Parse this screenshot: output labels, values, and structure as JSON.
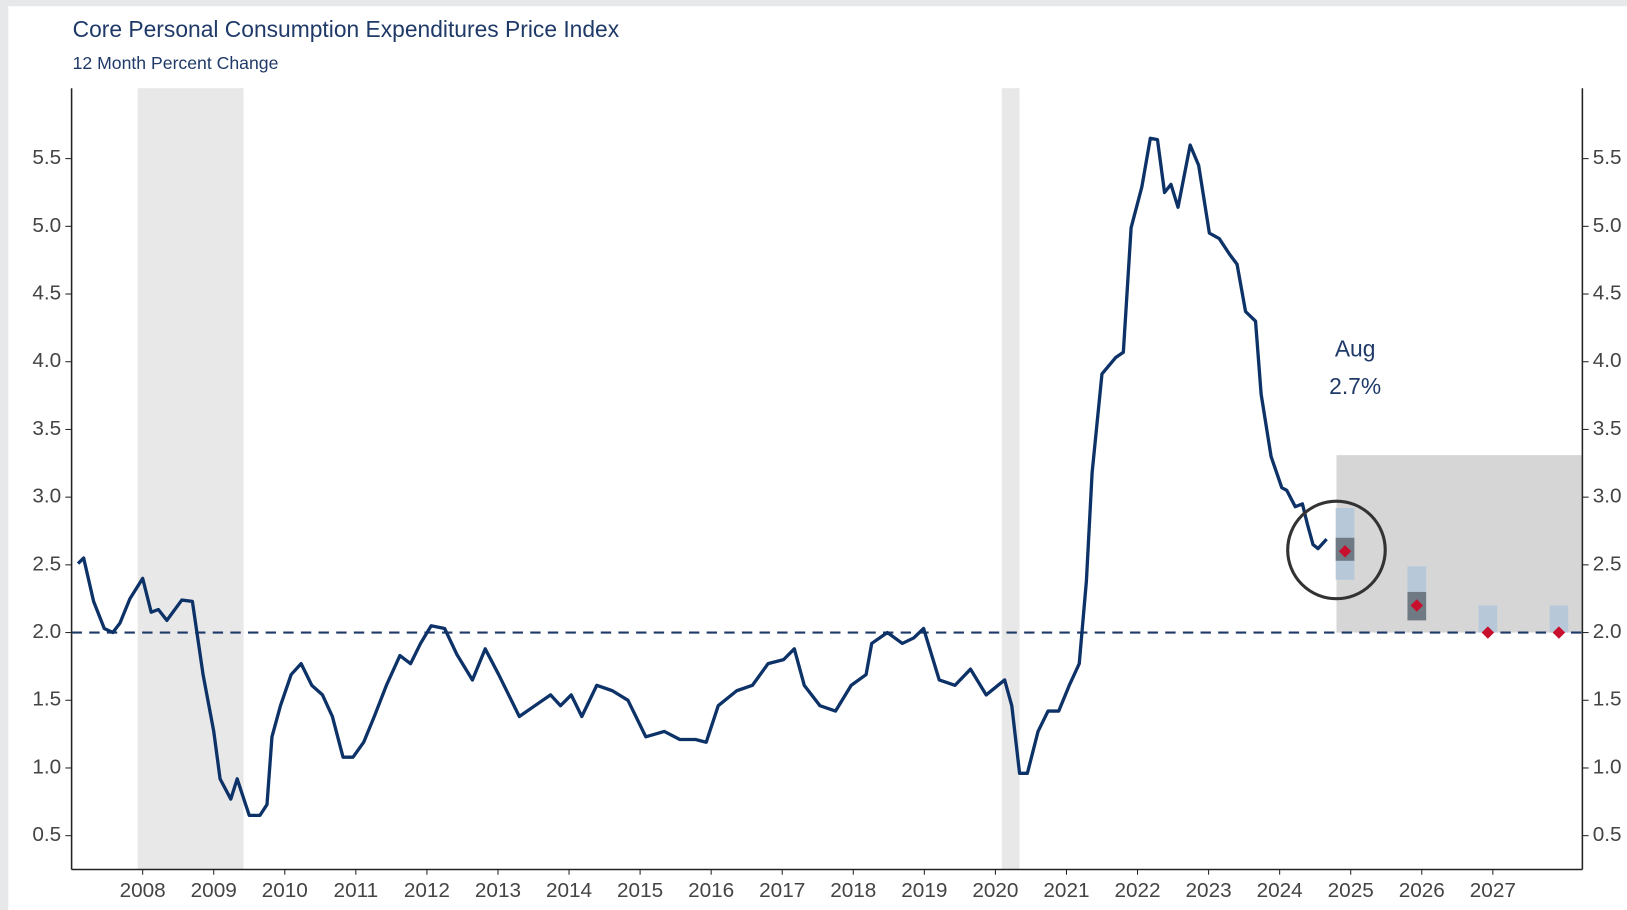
{
  "chart_data": {
    "type": "line",
    "title": "Core Personal Consumption Expenditures Price Index",
    "subtitle": "12 Month Percent Change",
    "color": "#0d3268",
    "x": [
      2007.09,
      2007.17,
      2007.31,
      2007.46,
      2007.58,
      2007.68,
      2007.82,
      2008.0,
      2008.12,
      2008.22,
      2008.34,
      2008.55,
      2008.7,
      2008.85,
      2009.0,
      2009.09,
      2009.24,
      2009.33,
      2009.5,
      2009.65,
      2009.75,
      2009.82,
      2009.94,
      2010.09,
      2010.23,
      2010.38,
      2010.53,
      2010.67,
      2010.82,
      2010.96,
      2011.11,
      2011.26,
      2011.43,
      2011.62,
      2011.77,
      2011.91,
      2012.06,
      2012.25,
      2012.42,
      2012.64,
      2012.82,
      2013.01,
      2013.3,
      2013.52,
      2013.74,
      2013.88,
      2014.03,
      2014.18,
      2014.39,
      2014.61,
      2014.83,
      2015.08,
      2015.34,
      2015.56,
      2015.78,
      2015.93,
      2016.1,
      2016.36,
      2016.58,
      2016.8,
      2017.02,
      2017.17,
      2017.31,
      2017.53,
      2017.75,
      2017.97,
      2018.18,
      2018.26,
      2018.48,
      2018.69,
      2018.85,
      2018.99,
      2019.21,
      2019.43,
      2019.65,
      2019.87,
      2020.13,
      2020.23,
      2020.34,
      2020.45,
      2020.6,
      2020.74,
      2020.89,
      2021.04,
      2021.18,
      2021.28,
      2021.36,
      2021.5,
      2021.69,
      2021.8,
      2021.91,
      2022.06,
      2022.18,
      2022.28,
      2022.38,
      2022.47,
      2022.57,
      2022.74,
      2022.86,
      2023.01,
      2023.15,
      2023.3,
      2023.4,
      2023.52,
      2023.66,
      2023.74,
      2023.88,
      2024.03,
      2024.1,
      2024.22,
      2024.32,
      2024.39,
      2024.47,
      2024.54,
      2024.66
    ],
    "values": [
      2.51,
      2.55,
      2.23,
      2.03,
      2.0,
      2.07,
      2.25,
      2.4,
      2.15,
      2.17,
      2.09,
      2.24,
      2.23,
      1.69,
      1.27,
      0.92,
      0.77,
      0.92,
      0.65,
      0.65,
      0.73,
      1.23,
      1.46,
      1.69,
      1.77,
      1.61,
      1.54,
      1.38,
      1.08,
      1.08,
      1.19,
      1.38,
      1.61,
      1.83,
      1.77,
      1.92,
      2.05,
      2.03,
      1.84,
      1.65,
      1.88,
      1.69,
      1.38,
      1.46,
      1.54,
      1.46,
      1.54,
      1.38,
      1.61,
      1.57,
      1.5,
      1.23,
      1.27,
      1.21,
      1.21,
      1.19,
      1.46,
      1.57,
      1.61,
      1.77,
      1.8,
      1.88,
      1.61,
      1.46,
      1.42,
      1.61,
      1.69,
      1.92,
      2.0,
      1.92,
      1.96,
      2.03,
      1.65,
      1.61,
      1.73,
      1.54,
      1.65,
      1.46,
      0.96,
      0.96,
      1.27,
      1.42,
      1.42,
      1.61,
      1.77,
      2.38,
      3.18,
      3.91,
      4.03,
      4.07,
      4.99,
      5.29,
      5.65,
      5.64,
      5.25,
      5.31,
      5.14,
      5.6,
      5.45,
      4.95,
      4.91,
      4.79,
      4.72,
      4.37,
      4.3,
      3.76,
      3.3,
      3.07,
      3.05,
      2.93,
      2.95,
      2.8,
      2.65,
      2.62,
      2.69
    ],
    "xlim": [
      2007,
      2028.26
    ],
    "ylim": [
      0.25,
      6.02
    ],
    "xticks": [
      2008,
      2009,
      2010,
      2011,
      2012,
      2013,
      2014,
      2015,
      2016,
      2017,
      2018,
      2019,
      2020,
      2021,
      2022,
      2023,
      2024,
      2025,
      2026,
      2027
    ],
    "yticks": [
      0.5,
      {
        "value": 1.0,
        "label": "1.0"
      },
      1.5,
      {
        "value": 2.0,
        "label": "2.0"
      },
      2.5,
      {
        "value": 3.0,
        "label": "3.0"
      },
      3.5,
      {
        "value": 4.0,
        "label": "4.0"
      },
      4.5,
      {
        "value": 5.0,
        "label": "5.0"
      },
      5.5
    ],
    "recessions": [
      [
        2007.93,
        2009.42
      ],
      [
        2020.09,
        2020.34
      ]
    ],
    "reference_line": 2.0,
    "projection_box": {
      "x": 2024.8,
      "ylim": [
        2.0,
        3.31
      ]
    },
    "projections": [
      {
        "x": 2024.92,
        "range": [
          2.39,
          2.92
        ],
        "central": [
          2.53,
          2.7
        ],
        "median": 2.6
      },
      {
        "x": 2025.93,
        "range": [
          2.09,
          2.49
        ],
        "central": [
          2.09,
          2.3
        ],
        "median": 2.2
      },
      {
        "x": 2026.93,
        "range": [
          2.0,
          2.2
        ],
        "median": 2.0
      },
      {
        "x": 2027.93,
        "range": [
          2.0,
          2.2
        ],
        "median": 2.0
      }
    ],
    "annotations": [
      "Aug",
      "2.7%"
    ]
  }
}
